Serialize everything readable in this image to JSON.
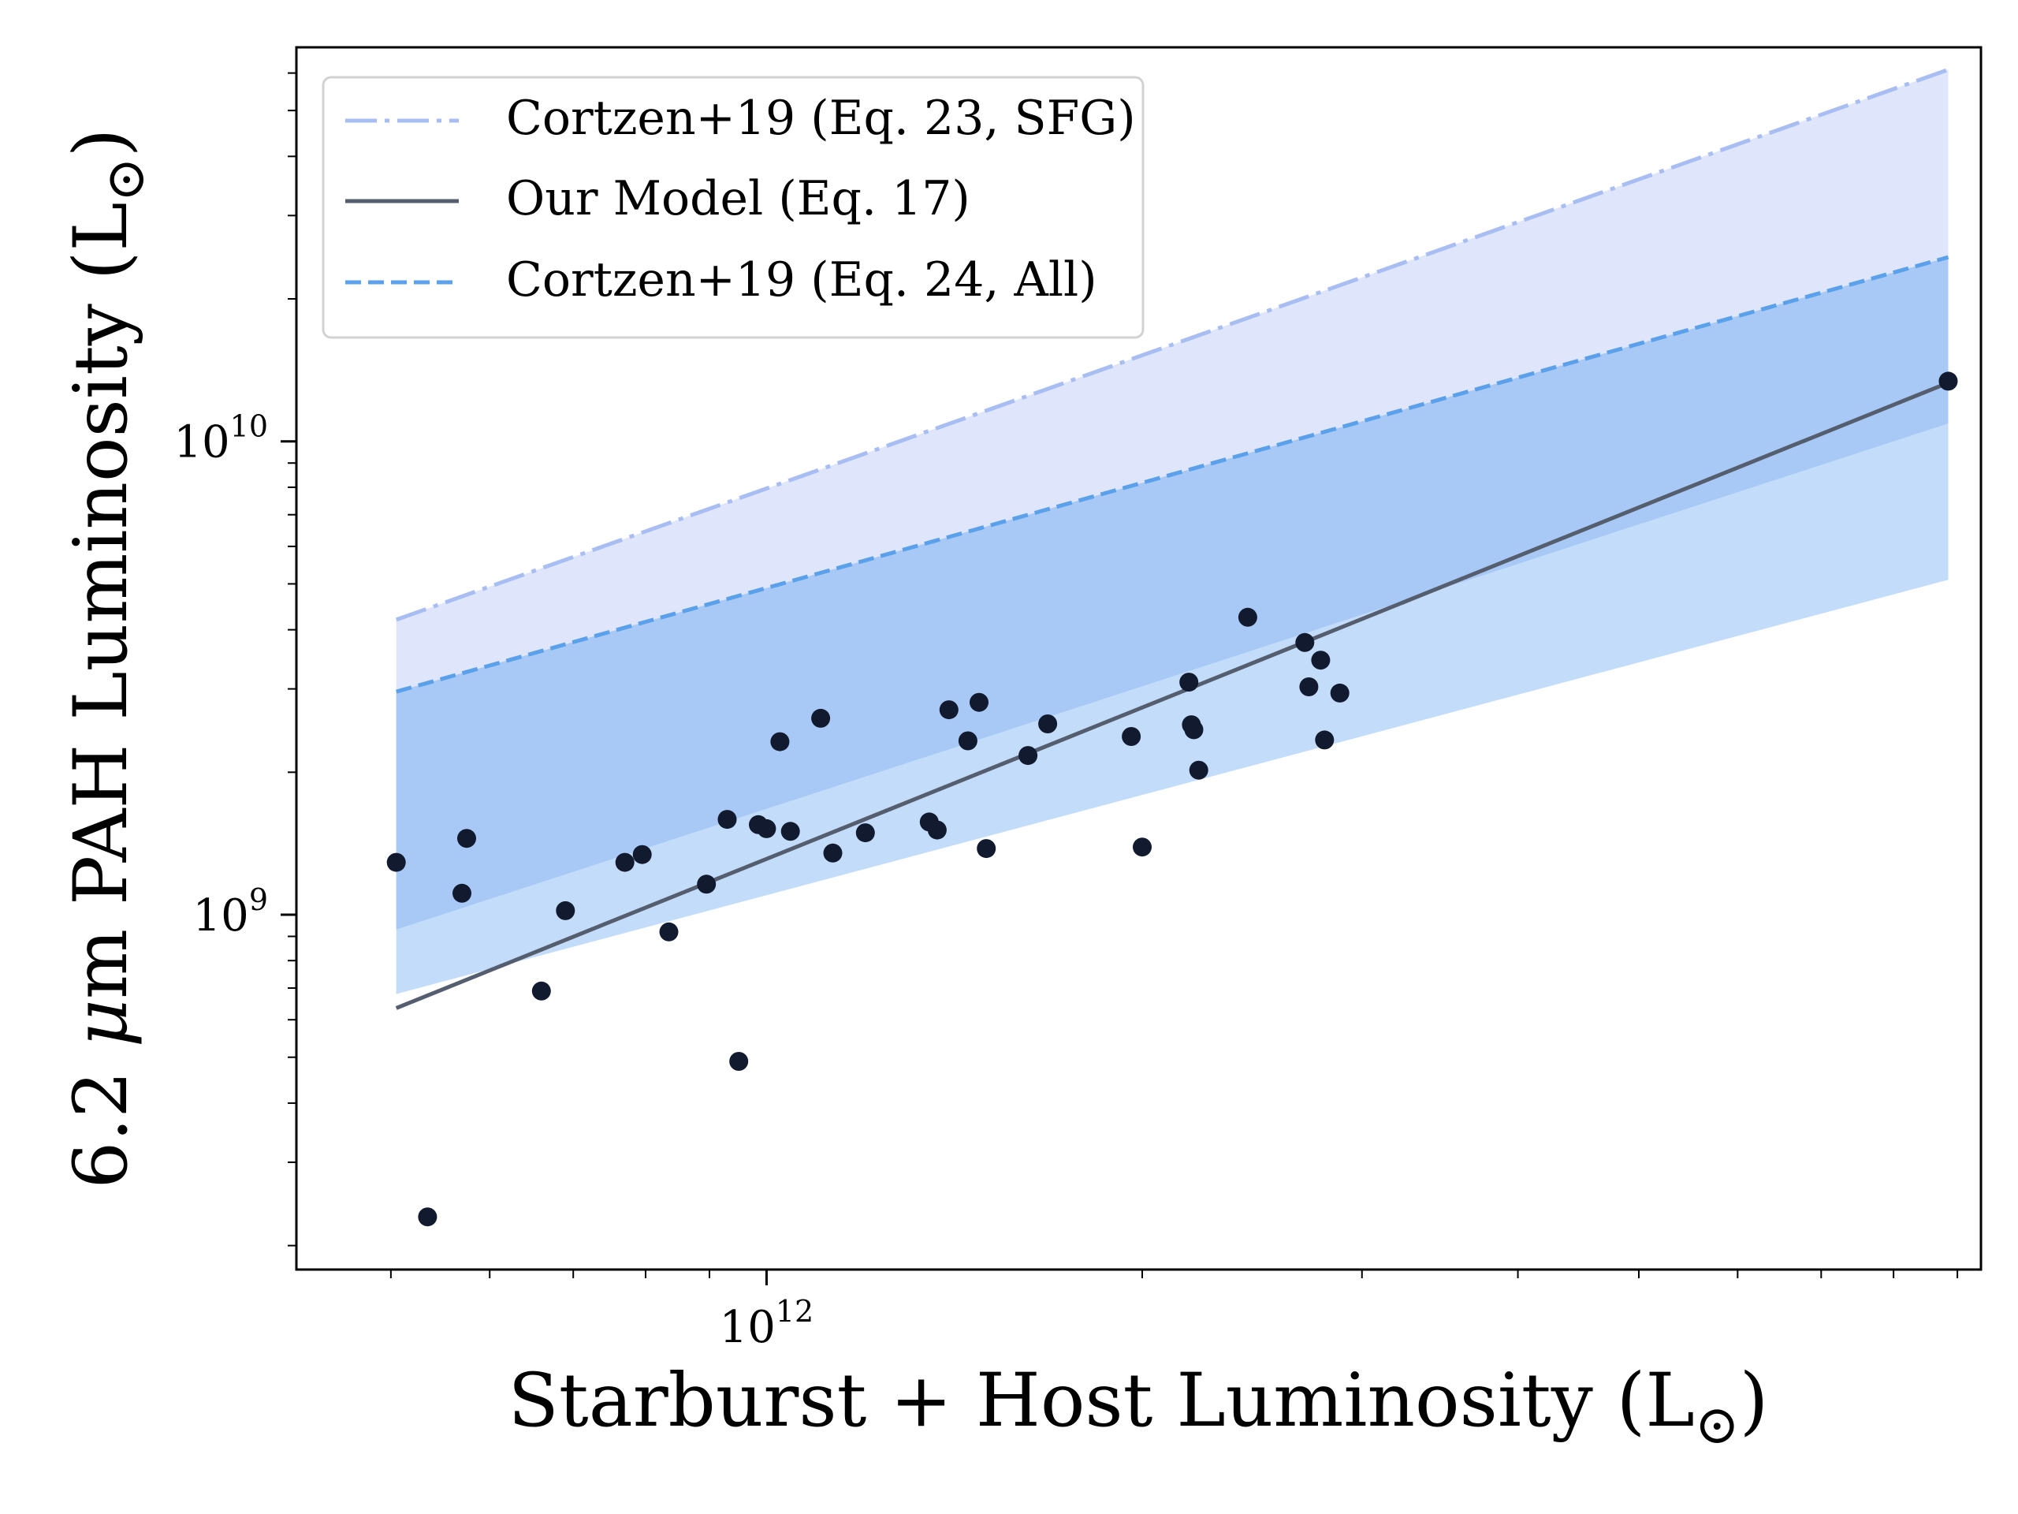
{
  "chart_data": {
    "type": "scatter",
    "xscale": "log",
    "yscale": "log",
    "xlabel_main": "Starburst + Host Luminosity (L",
    "xlabel_symbol": "⊙",
    "xlabel_close": ")",
    "ylabel_prefix": "6.2 ",
    "ylabel_mu": "μ",
    "ylabel_main": "m PAH Luminosity (L",
    "ylabel_symbol": "⊙",
    "ylabel_close": ")",
    "xlim": [
      420000000000.0,
      9400000000000.0
    ],
    "ylim": [
      178000000.0,
      68000000000.0
    ],
    "xticks_major": [
      {
        "value": 1000000000000.0,
        "base": "10",
        "exp": "12"
      }
    ],
    "yticks_major": [
      {
        "value": 1000000000.0,
        "base": "10",
        "exp": "9"
      },
      {
        "value": 10000000000.0,
        "base": "10",
        "exp": "10"
      }
    ],
    "xticks_minor": [
      400000000000.0,
      500000000000.0,
      600000000000.0,
      700000000000.0,
      800000000000.0,
      900000000000.0,
      2000000000000.0,
      3000000000000.0,
      4000000000000.0,
      5000000000000.0,
      6000000000000.0,
      7000000000000.0,
      8000000000000.0,
      9000000000000.0
    ],
    "yticks_minor": [
      200000000.0,
      300000000.0,
      400000000.0,
      500000000.0,
      600000000.0,
      700000000.0,
      800000000.0,
      900000000.0,
      2000000000.0,
      3000000000.0,
      4000000000.0,
      5000000000.0,
      6000000000.0,
      7000000000.0,
      8000000000.0,
      9000000000.0,
      20000000000.0,
      30000000000.0,
      40000000000.0,
      50000000000.0,
      60000000000.0
    ],
    "bands": [
      {
        "name": "sfg-band",
        "color": "#dfe6fb",
        "x": [
          505000000000.0,
          8850000000000.0
        ],
        "upper": [
          4200000000.0,
          61000000000.0
        ],
        "lower": [
          930000000.0,
          10900000000.0
        ]
      },
      {
        "name": "all-band",
        "color": "#a8c9f5",
        "x": [
          505000000000.0,
          8850000000000.0
        ],
        "upper": [
          2960000000.0,
          24500000000.0
        ],
        "lower": [
          930000000.0,
          10900000000.0
        ]
      },
      {
        "name": "model-band",
        "color": "#c2dcf9",
        "x": [
          505000000000.0,
          8850000000000.0
        ],
        "upper": [
          930000000.0,
          10900000000.0
        ],
        "lower": [
          680000000.0,
          5100000000.0
        ]
      }
    ],
    "series": [
      {
        "name": "Cortzen+19 (Eq. 23, SFG)",
        "style": "dashdot",
        "color": "#a8bdf2",
        "x": [
          505000000000.0,
          8850000000000.0
        ],
        "y": [
          4200000000.0,
          61000000000.0
        ]
      },
      {
        "name": "Our Model (Eq. 17)",
        "style": "solid",
        "color": "#555e6e",
        "x": [
          505000000000.0,
          8850000000000.0
        ],
        "y": [
          635000000.0,
          13300000000.0
        ]
      },
      {
        "name": "Cortzen+19 (Eq. 24, All)",
        "style": "dashed",
        "color": "#5aa0ea",
        "x": [
          505000000000.0,
          8850000000000.0
        ],
        "y": [
          2960000000.0,
          24500000000.0
        ]
      }
    ],
    "points": {
      "name": "sources",
      "color": "#111a2e",
      "x": [
        505000000000.0,
        535000000000.0,
        570000000000.0,
        575000000000.0,
        660000000000.0,
        690000000000.0,
        770000000000.0,
        795000000000.0,
        835000000000.0,
        895000000000.0,
        930000000000.0,
        950000000000.0,
        985000000000.0,
        1000000000000.0,
        1025000000000.0,
        1045000000000.0,
        1105000000000.0,
        1130000000000.0,
        1200000000000.0,
        1350000000000.0,
        1370000000000.0,
        1400000000000.0,
        1450000000000.0,
        1480000000000.0,
        1500000000000.0,
        1620000000000.0,
        1680000000000.0,
        1960000000000.0,
        2000000000000.0,
        2180000000000.0,
        2190000000000.0,
        2200000000000.0,
        2220000000000.0,
        2430000000000.0,
        2700000000000.0,
        2720000000000.0,
        2780000000000.0,
        2800000000000.0,
        2880000000000.0,
        8850000000000.0
      ],
      "y": [
        1290000000.0,
        230000000.0,
        1110000000.0,
        1450000000.0,
        690000000.0,
        1020000000.0,
        1290000000.0,
        1340000000.0,
        920000000.0,
        1160000000.0,
        1590000000.0,
        490000000.0,
        1550000000.0,
        1520000000.0,
        2320000000.0,
        1500000000.0,
        2600000000.0,
        1350000000.0,
        1490000000.0,
        1570000000.0,
        1510000000.0,
        2710000000.0,
        2330000000.0,
        2810000000.0,
        1380000000.0,
        2170000000.0,
        2530000000.0,
        2380000000.0,
        1390000000.0,
        3100000000.0,
        2520000000.0,
        2460000000.0,
        2020000000.0,
        4250000000.0,
        3760000000.0,
        3030000000.0,
        3450000000.0,
        2340000000.0,
        2940000000.0,
        13400000000.0
      ]
    },
    "legend_position": "upper-left"
  }
}
